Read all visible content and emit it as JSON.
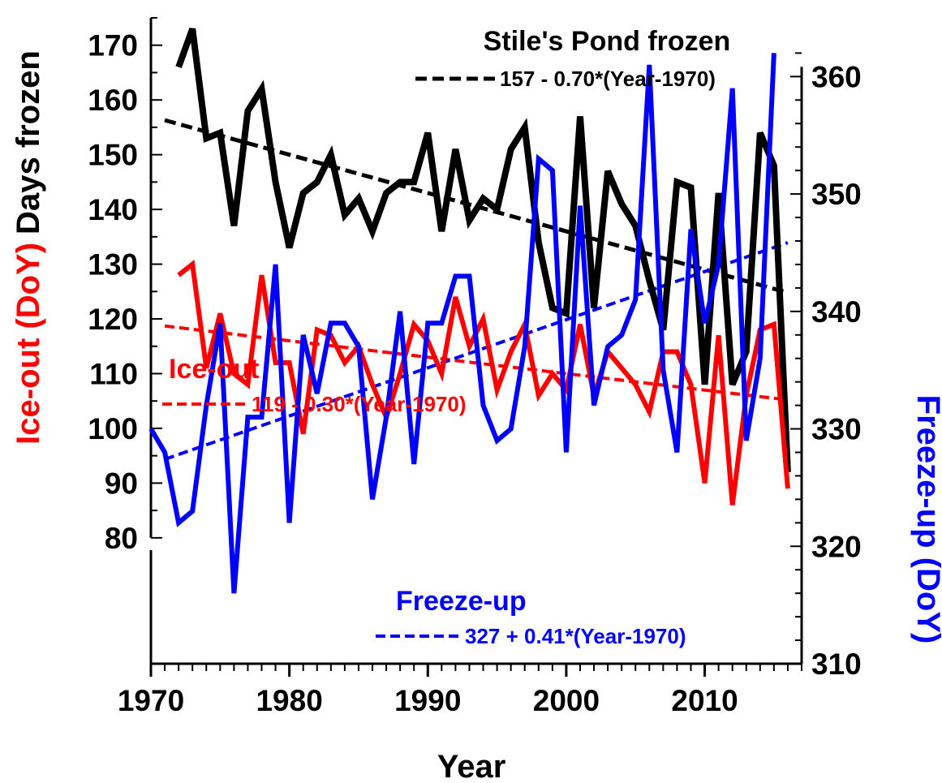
{
  "chart_data": {
    "type": "line",
    "title": "",
    "xlabel": "Year",
    "ylabel_left": {
      "ice_out_part": "Ice-out (DoY)",
      "days_frozen_part": "Days frozen",
      "ice_out_color": "#ff0000",
      "days_frozen_color": "#000000"
    },
    "ylabel_right": "Freeze-up (DoY)",
    "xlim": [
      1970,
      2017
    ],
    "ylim_left": [
      57,
      175
    ],
    "ylim_right": [
      310,
      365
    ],
    "x_ticks": [
      {
        "value": 1970,
        "label": "1970"
      },
      {
        "value": 1980,
        "label": "1980"
      },
      {
        "value": 1990,
        "label": "1990"
      },
      {
        "value": 2000,
        "label": "2000"
      },
      {
        "value": 2010,
        "label": "2010"
      }
    ],
    "left_ticks": [
      {
        "value": 80,
        "label": "80"
      },
      {
        "value": 90,
        "label": "90"
      },
      {
        "value": 100,
        "label": "100"
      },
      {
        "value": 110,
        "label": "110"
      },
      {
        "value": 120,
        "label": "120"
      },
      {
        "value": 130,
        "label": "130"
      },
      {
        "value": 140,
        "label": "140"
      },
      {
        "value": 150,
        "label": "150"
      },
      {
        "value": 160,
        "label": "160"
      },
      {
        "value": 170,
        "label": "170"
      }
    ],
    "right_ticks": [
      {
        "value": 310,
        "label": "310"
      },
      {
        "value": 320,
        "label": "320"
      },
      {
        "value": 330,
        "label": "330"
      },
      {
        "value": 340,
        "label": "340"
      },
      {
        "value": 350,
        "label": "350"
      },
      {
        "value": 360,
        "label": "360"
      }
    ],
    "series": [
      {
        "name": "Stile's Pond frozen",
        "color": "#000000",
        "axis": "left",
        "x": [
          1972,
          1973,
          1974,
          1975,
          1976,
          1977,
          1978,
          1979,
          1980,
          1981,
          1982,
          1983,
          1984,
          1985,
          1986,
          1987,
          1988,
          1989,
          1990,
          1991,
          1992,
          1993,
          1994,
          1995,
          1996,
          1997,
          1998,
          1999,
          2000,
          2001,
          2002,
          2003,
          2004,
          2005,
          2006,
          2007,
          2008,
          2009,
          2010,
          2011,
          2012,
          2013,
          2014,
          2015,
          2016
        ],
        "y": [
          166,
          173,
          153,
          154,
          137,
          158,
          162,
          145,
          133,
          143,
          145,
          150,
          139,
          142,
          136,
          143,
          145,
          145,
          154,
          136,
          151,
          138,
          142,
          140,
          151,
          155,
          134,
          122,
          121,
          157,
          122,
          147,
          141,
          137,
          127,
          118,
          145,
          144,
          108,
          143,
          108,
          114,
          154,
          148,
          92
        ]
      },
      {
        "name": "Ice-out",
        "color": "#ff0000",
        "axis": "left",
        "x": [
          1972,
          1973,
          1974,
          1975,
          1976,
          1977,
          1978,
          1979,
          1980,
          1981,
          1982,
          1983,
          1984,
          1985,
          1986,
          1987,
          1988,
          1989,
          1990,
          1991,
          1992,
          1993,
          1994,
          1995,
          1996,
          1997,
          1998,
          1999,
          2000,
          2001,
          2002,
          2003,
          2004,
          2005,
          2006,
          2007,
          2008,
          2009,
          2010,
          2011,
          2012,
          2013,
          2014,
          2015,
          2016
        ],
        "y": [
          128,
          130,
          111,
          121,
          110,
          108,
          128,
          112,
          112,
          99,
          118,
          117,
          112,
          115,
          108,
          102,
          110,
          119,
          116,
          110,
          124,
          115,
          120,
          107,
          114,
          119,
          106,
          110,
          107,
          119,
          106,
          114,
          111,
          108,
          103,
          114,
          114,
          108,
          90,
          117,
          86,
          106,
          118,
          119,
          89
        ]
      },
      {
        "name": "Freeze-up",
        "color": "#0000ff",
        "axis": "right",
        "x": [
          1970,
          1971,
          1972,
          1973,
          1974,
          1975,
          1976,
          1977,
          1978,
          1979,
          1980,
          1981,
          1982,
          1983,
          1984,
          1985,
          1986,
          1987,
          1988,
          1989,
          1990,
          1991,
          1992,
          1993,
          1994,
          1995,
          1996,
          1997,
          1998,
          1999,
          2000,
          2001,
          2002,
          2003,
          2004,
          2005,
          2006,
          2007,
          2008,
          2009,
          2010,
          2011,
          2012,
          2013,
          2014,
          2015
        ],
        "y": [
          330,
          328,
          322,
          323,
          332,
          339,
          316,
          331,
          331,
          344,
          322,
          338,
          333,
          339,
          339,
          337,
          324,
          331,
          340,
          327,
          339,
          339,
          343,
          343,
          332,
          329,
          330,
          337,
          353,
          352,
          328,
          349,
          332,
          337,
          338,
          341,
          361,
          335,
          328,
          347,
          339,
          344,
          359,
          329,
          336,
          362
        ]
      }
    ],
    "trends": [
      {
        "series": "Stile's Pond frozen",
        "axis": "left",
        "color": "#000000",
        "label": "157 - 0.70*(Year-1970)",
        "intercept": 157,
        "slope": -0.7,
        "x_range": [
          1971,
          2016
        ]
      },
      {
        "series": "Ice-out",
        "axis": "left",
        "color": "#ff0000",
        "label": "119 - 0.30*(Year-1970)",
        "intercept": 119,
        "slope": -0.3,
        "x_range": [
          1971,
          2016
        ]
      },
      {
        "series": "Freeze-up",
        "axis": "right",
        "color": "#0000ff",
        "label": "327 + 0.41*(Year-1970)",
        "intercept": 327,
        "slope": 0.41,
        "x_range": [
          1971,
          2016
        ]
      }
    ],
    "grid": false,
    "legend": "in-plot annotations"
  }
}
